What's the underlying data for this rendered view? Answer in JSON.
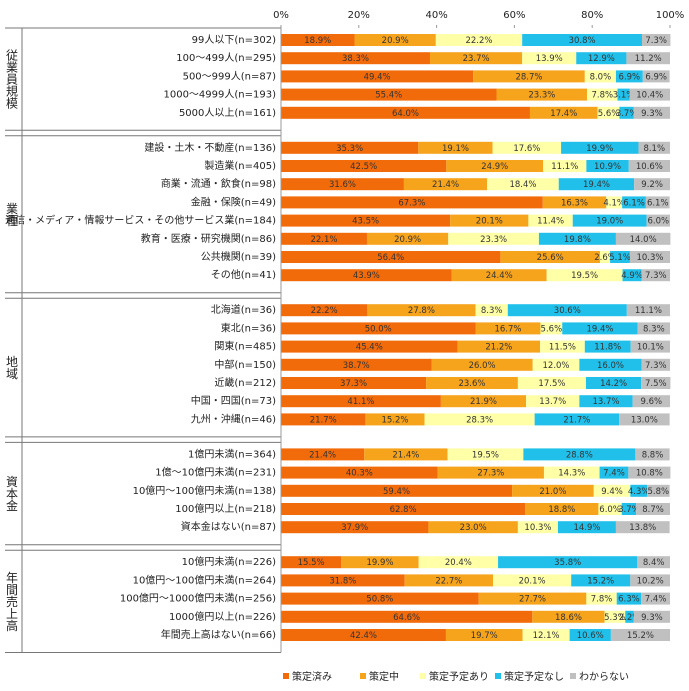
{
  "chart_data": {
    "type": "stacked-bar",
    "xlim": [
      0,
      100
    ],
    "xticks": [
      {
        "value": 0,
        "label": "0%"
      },
      {
        "value": 20,
        "label": "20%"
      },
      {
        "value": 40,
        "label": "40%"
      },
      {
        "value": 60,
        "label": "60%"
      },
      {
        "value": 80,
        "label": "80%"
      },
      {
        "value": 100,
        "label": "100%"
      }
    ],
    "series": [
      {
        "name": "策定済み",
        "color": "#f26b0a"
      },
      {
        "name": "策定中",
        "color": "#f7a41d"
      },
      {
        "name": "策定予定あり",
        "color": "#ffffa8"
      },
      {
        "name": "策定予定なし",
        "color": "#21c0ea"
      },
      {
        "name": "わからない",
        "color": "#c0c0c0"
      }
    ],
    "groups": [
      {
        "name": "従業員規模",
        "categories": [
          "99人以下(n=302)",
          "100～499人(n=295)",
          "500～999人(n=87)",
          "1000～4999人(n=193)",
          "5000人以上(n=161)"
        ],
        "series": [
          {
            "values": [
              18.9,
              38.3,
              49.4,
              55.4,
              64.0
            ],
            "value_labels": [
              "18.9%",
              "38.3%",
              "49.4%",
              "55.4%",
              "64.0%"
            ]
          },
          {
            "values": [
              20.9,
              23.7,
              28.7,
              23.3,
              17.4
            ],
            "value_labels": [
              "20.9%",
              "23.7%",
              "28.7%",
              "23.3%",
              "17.4%"
            ]
          },
          {
            "values": [
              22.2,
              13.9,
              8.0,
              7.8,
              5.6
            ],
            "value_labels": [
              "22.2%",
              "13.9%",
              "8.0%",
              "7.8%",
              "5.6%"
            ]
          },
          {
            "values": [
              30.8,
              12.9,
              6.9,
              3.1,
              3.7
            ],
            "value_labels": [
              "30.8%",
              "12.9%",
              "6.9%",
              "3.1%",
              "3.7%"
            ]
          },
          {
            "values": [
              7.3,
              11.2,
              6.9,
              10.4,
              9.3
            ],
            "value_labels": [
              "7.3%",
              "11.2%",
              "6.9%",
              "10.4%",
              "9.3%"
            ]
          }
        ]
      },
      {
        "name": "業種",
        "categories": [
          "建設・土木・不動産(n=136)",
          "製造業(n=405)",
          "商業・流通・飲食(n=98)",
          "金融・保険(n=49)",
          "通信・メディア・情報サービス・その他サービス業(n=184)",
          "教育・医療・研究機関(n=86)",
          "公共機関(n=39)",
          "その他(n=41)"
        ],
        "series": [
          {
            "values": [
              35.3,
              42.5,
              31.6,
              67.3,
              43.5,
              22.1,
              56.4,
              43.9
            ],
            "value_labels": [
              "35.3%",
              "42.5%",
              "31.6%",
              "67.3%",
              "43.5%",
              "22.1%",
              "56.4%",
              "43.9%"
            ]
          },
          {
            "values": [
              19.1,
              24.9,
              21.4,
              16.3,
              20.1,
              20.9,
              25.6,
              24.4
            ],
            "value_labels": [
              "19.1%",
              "24.9%",
              "21.4%",
              "16.3%",
              "20.1%",
              "20.9%",
              "25.6%",
              "24.4%"
            ]
          },
          {
            "values": [
              17.6,
              11.1,
              18.4,
              4.1,
              11.4,
              23.3,
              2.6,
              19.5
            ],
            "value_labels": [
              "17.6%",
              "11.1%",
              "18.4%",
              "4.1%",
              "11.4%",
              "23.3%",
              "2.6%",
              "19.5%"
            ]
          },
          {
            "values": [
              19.9,
              10.9,
              19.4,
              6.1,
              19.0,
              19.8,
              5.1,
              4.9
            ],
            "value_labels": [
              "19.9%",
              "10.9%",
              "19.4%",
              "6.1%",
              "19.0%",
              "19.8%",
              "5.1%",
              "4.9%"
            ]
          },
          {
            "values": [
              8.1,
              10.6,
              9.2,
              6.1,
              6.0,
              14.0,
              10.3,
              7.3
            ],
            "value_labels": [
              "8.1%",
              "10.6%",
              "9.2%",
              "6.1%",
              "6.0%",
              "14.0%",
              "10.3%",
              "7.3%"
            ]
          }
        ]
      },
      {
        "name": "地域",
        "categories": [
          "北海道(n=36)",
          "東北(n=36)",
          "関東(n=485)",
          "中部(n=150)",
          "近畿(n=212)",
          "中国・四国(n=73)",
          "九州・沖縄(n=46)"
        ],
        "series": [
          {
            "values": [
              22.2,
              50.0,
              45.4,
              38.7,
              37.3,
              41.1,
              21.7
            ],
            "value_labels": [
              "22.2%",
              "50.0%",
              "45.4%",
              "38.7%",
              "37.3%",
              "41.1%",
              "21.7%"
            ]
          },
          {
            "values": [
              27.8,
              16.7,
              21.2,
              26.0,
              23.6,
              21.9,
              15.2
            ],
            "value_labels": [
              "27.8%",
              "16.7%",
              "21.2%",
              "26.0%",
              "23.6%",
              "21.9%",
              "15.2%"
            ]
          },
          {
            "values": [
              8.3,
              5.6,
              11.5,
              12.0,
              17.5,
              13.7,
              28.3
            ],
            "value_labels": [
              "8.3%",
              "5.6%",
              "11.5%",
              "12.0%",
              "17.5%",
              "13.7%",
              "28.3%"
            ]
          },
          {
            "values": [
              30.6,
              19.4,
              11.8,
              16.0,
              14.2,
              13.7,
              21.7
            ],
            "value_labels": [
              "30.6%",
              "19.4%",
              "11.8%",
              "16.0%",
              "14.2%",
              "13.7%",
              "21.7%"
            ]
          },
          {
            "values": [
              11.1,
              8.3,
              10.1,
              7.3,
              7.5,
              9.6,
              13.0
            ],
            "value_labels": [
              "11.1%",
              "8.3%",
              "10.1%",
              "7.3%",
              "7.5%",
              "9.6%",
              "13.0%"
            ]
          }
        ]
      },
      {
        "name": "資本金",
        "categories": [
          "1億円未満(n=364)",
          "1億～10億円未満(n=231)",
          "10億円～100億円未満(n=138)",
          "100億円以上(n=218)",
          "資本金はない(n=87)"
        ],
        "series": [
          {
            "values": [
              21.4,
              40.3,
              59.4,
              62.8,
              37.9
            ],
            "value_labels": [
              "21.4%",
              "40.3%",
              "59.4%",
              "62.8%",
              "37.9%"
            ]
          },
          {
            "values": [
              21.4,
              27.3,
              21.0,
              18.8,
              23.0
            ],
            "value_labels": [
              "21.4%",
              "27.3%",
              "21.0%",
              "18.8%",
              "23.0%"
            ]
          },
          {
            "values": [
              19.5,
              14.3,
              9.4,
              6.0,
              10.3
            ],
            "value_labels": [
              "19.5%",
              "14.3%",
              "9.4%",
              "6.0%",
              "10.3%"
            ]
          },
          {
            "values": [
              28.8,
              7.4,
              4.3,
              3.7,
              14.9
            ],
            "value_labels": [
              "28.8%",
              "7.4%",
              "4.3%",
              "3.7%",
              "14.9%"
            ]
          },
          {
            "values": [
              8.8,
              10.8,
              5.8,
              8.7,
              13.8
            ],
            "value_labels": [
              "8.8%",
              "10.8%",
              "5.8%",
              "8.7%",
              "13.8%"
            ]
          }
        ]
      },
      {
        "name": "年間売上高",
        "categories": [
          "10億円未満(n=226)",
          "10億円～100億円未満(n=264)",
          "100億円～1000億円未満(n=256)",
          "1000億円以上(n=226)",
          "年間売上高はない(n=66)"
        ],
        "series": [
          {
            "values": [
              15.5,
              31.8,
              50.8,
              64.6,
              42.4
            ],
            "value_labels": [
              "15.5%",
              "31.8%",
              "50.8%",
              "64.6%",
              "42.4%"
            ]
          },
          {
            "values": [
              19.9,
              22.7,
              27.7,
              18.6,
              19.7
            ],
            "value_labels": [
              "19.9%",
              "22.7%",
              "27.7%",
              "18.6%",
              "19.7%"
            ]
          },
          {
            "values": [
              20.4,
              20.1,
              7.8,
              5.3,
              12.1
            ],
            "value_labels": [
              "20.4%",
              "20.1%",
              "7.8%",
              "5.3%",
              "12.1%"
            ]
          },
          {
            "values": [
              35.8,
              15.2,
              6.3,
              2.2,
              10.6
            ],
            "value_labels": [
              "35.8%",
              "15.2%",
              "6.3%",
              "2.2%",
              "10.6%"
            ]
          },
          {
            "values": [
              8.4,
              10.2,
              7.4,
              9.3,
              15.2
            ],
            "value_labels": [
              "8.4%",
              "10.2%",
              "7.4%",
              "9.3%",
              "15.2%"
            ]
          }
        ]
      }
    ]
  }
}
